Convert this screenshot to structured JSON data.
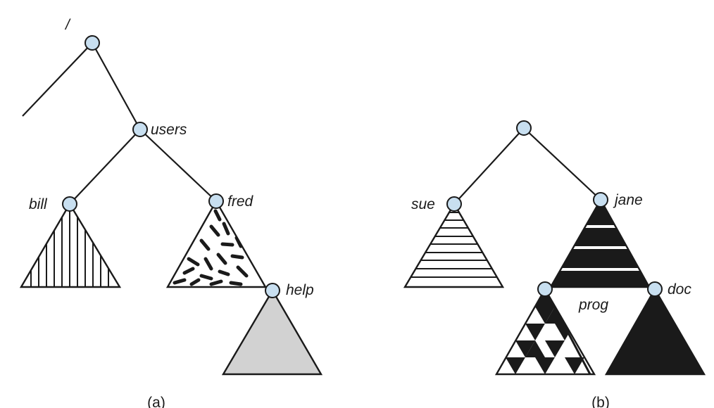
{
  "figure_a": {
    "root_label": "/",
    "users_label": "users",
    "bill_label": "bill",
    "fred_label": "fred",
    "help_label": "help",
    "caption": "(a)"
  },
  "figure_b": {
    "sue_label": "sue",
    "jane_label": "jane",
    "prog_label": "prog",
    "doc_label": "doc",
    "caption": "(b)"
  },
  "colors": {
    "node_fill": "#c8dff0",
    "line": "#1a1a1a",
    "help_subtree_fill": "#d2d2d2"
  }
}
